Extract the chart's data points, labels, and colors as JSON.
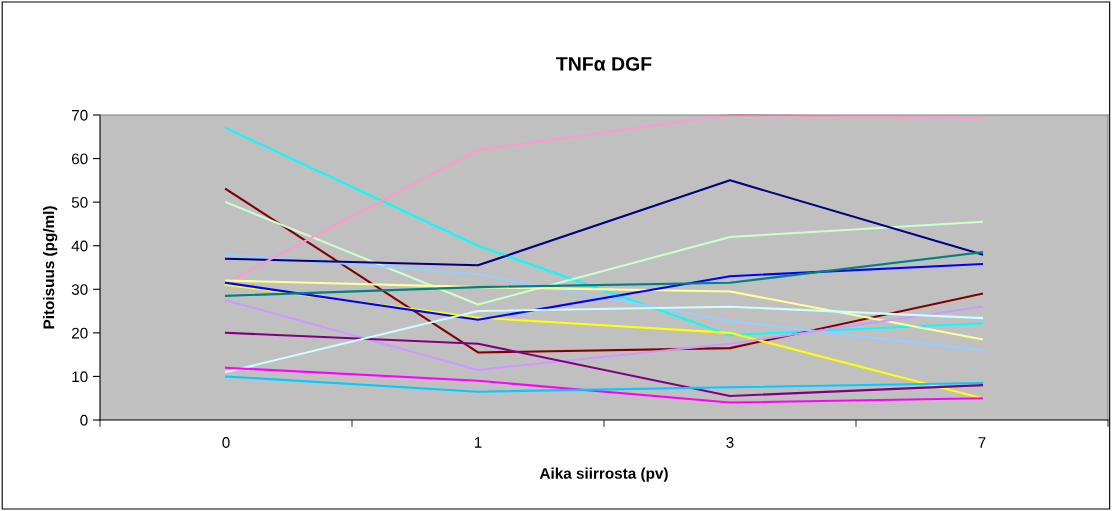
{
  "chart_data": {
    "type": "line",
    "title": "TNFα DGF",
    "xlabel": "Aika siirrosta (pv)",
    "ylabel": "Pitoisuus (pg/ml)",
    "categories": [
      "0",
      "1",
      "3",
      "7"
    ],
    "ylim": [
      0,
      70
    ],
    "yticks": [
      0,
      10,
      20,
      30,
      40,
      50,
      60,
      70
    ],
    "grid": false,
    "marker": "none",
    "line_style": "solid",
    "series": [
      {
        "color": "#00ffff",
        "values": [
          67,
          40,
          19.5,
          22.2
        ]
      },
      {
        "color": "#800000",
        "values": [
          53,
          15.5,
          16.5,
          29
        ]
      },
      {
        "color": "#ccffcc",
        "values": [
          50,
          26.5,
          42,
          45.5
        ]
      },
      {
        "color": "#99ccff",
        "values": [
          38,
          33.5,
          22.7,
          16
        ]
      },
      {
        "color": "#000080",
        "values": [
          37,
          35.5,
          55,
          38
        ]
      },
      {
        "color": "#ff99cc",
        "values": [
          31.5,
          62,
          70,
          69.3
        ]
      },
      {
        "color": "#ffff99",
        "values": [
          32,
          30.5,
          29.5,
          18.5
        ]
      },
      {
        "color": "#ffff00",
        "values": [
          31,
          23.5,
          20,
          5
        ]
      },
      {
        "color": "#0000ff",
        "values": [
          31.5,
          23,
          33,
          35.8
        ]
      },
      {
        "color": "#008080",
        "values": [
          28.5,
          30.5,
          31.5,
          38.5
        ]
      },
      {
        "color": "#cc99ff",
        "values": [
          27.5,
          11.5,
          17.5,
          26
        ]
      },
      {
        "color": "#800080",
        "values": [
          20,
          17.5,
          5.5,
          8
        ]
      },
      {
        "color": "#ccffff",
        "values": [
          11,
          25,
          26,
          23.4
        ]
      },
      {
        "color": "#ff00ff",
        "values": [
          12,
          9,
          4,
          5
        ]
      },
      {
        "color": "#00ccff",
        "values": [
          10,
          6.5,
          7.5,
          8.5
        ]
      }
    ]
  }
}
